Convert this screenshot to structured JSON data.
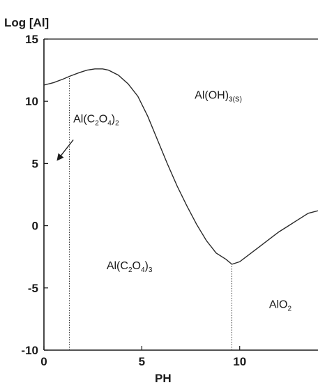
{
  "chart_data": {
    "type": "line",
    "xlabel": "PH",
    "ylabel": "Log [Al]",
    "xlim": [
      0,
      14
    ],
    "ylim": [
      -10,
      15
    ],
    "x_ticks": [
      0,
      5,
      10
    ],
    "y_ticks": [
      15,
      10,
      5,
      0,
      -5,
      -10
    ],
    "grid": false,
    "line_color": "#2a2a2a",
    "series": [
      {
        "x": [
          0,
          0.5,
          1.0,
          1.3,
          1.8,
          2.2,
          2.6,
          3.0,
          3.3,
          3.8,
          4.3,
          4.8,
          5.3,
          5.8,
          6.3,
          6.8,
          7.3,
          7.8,
          8.3,
          8.8,
          9.3,
          9.6,
          10.0,
          10.5,
          11.0,
          11.5,
          12.0,
          12.5,
          13.0,
          13.5,
          14.0
        ],
        "values": [
          11.3,
          11.5,
          11.8,
          12.0,
          12.3,
          12.5,
          12.6,
          12.6,
          12.5,
          12.1,
          11.4,
          10.4,
          8.8,
          6.9,
          5.0,
          3.2,
          1.6,
          0.1,
          -1.2,
          -2.2,
          -2.7,
          -3.1,
          -2.9,
          -2.3,
          -1.7,
          -1.1,
          -0.5,
          0.0,
          0.5,
          1.0,
          1.2
        ]
      }
    ],
    "boundaries": [
      {
        "x": 1.3,
        "y_from": -10,
        "y_to": 12.0
      },
      {
        "x": 9.6,
        "y_from": -10,
        "y_to": -3.1
      }
    ],
    "regions": [
      {
        "main": "Al(C",
        "parts": [
          {
            "t": "2",
            "sub": true
          },
          {
            "t": "O",
            "sub": false
          },
          {
            "t": "4",
            "sub": true
          },
          {
            "t": ")",
            "sub": false
          },
          {
            "t": "2",
            "sub": true
          }
        ],
        "x": 1.5,
        "y": 8.3
      },
      {
        "main": "Al(OH)",
        "parts": [
          {
            "t": "3(S)",
            "sub": true
          }
        ],
        "x": 7.7,
        "y": 10.2
      },
      {
        "main": "Al(C",
        "parts": [
          {
            "t": "2",
            "sub": true
          },
          {
            "t": "O",
            "sub": false
          },
          {
            "t": "4",
            "sub": true
          },
          {
            "t": ")",
            "sub": false
          },
          {
            "t": "3",
            "sub": true
          }
        ],
        "x": 3.2,
        "y": -3.5
      },
      {
        "main": "AlO",
        "parts": [
          {
            "t": "2",
            "sub": true
          }
        ],
        "x": 11.5,
        "y": -6.6
      }
    ],
    "annotation_arrow": {
      "from": [
        1.5,
        6.9
      ],
      "to": [
        0.7,
        5.3
      ]
    }
  }
}
